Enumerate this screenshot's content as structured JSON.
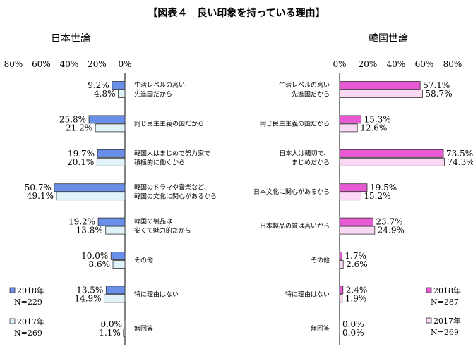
{
  "figure_title": "【図表４　良い印象を持っている理由】",
  "colors": {
    "jp_2018": "#6a8fe8",
    "jp_2017": "#dff3f8",
    "kr_2018": "#e85ad4",
    "kr_2017": "#fbd9f4",
    "outline": "#333333"
  },
  "chart_data": [
    {
      "type": "bar",
      "orientation": "horizontal",
      "direction": "right-to-left",
      "title": "日本世論",
      "xlim": [
        0,
        80
      ],
      "xticks": [
        "80%",
        "60%",
        "40%",
        "20%",
        "0%"
      ],
      "categories": [
        [
          "生活レベルの高い",
          "先進国だから"
        ],
        [
          "同じ民主主義の国だから"
        ],
        [
          "韓国人はまじめで努力家で",
          "積極的に働くから"
        ],
        [
          "韓国のドラマや音楽など、",
          "韓国の文化に関心があるから"
        ],
        [
          "韓国の製品は",
          "安くて魅力的だから"
        ],
        [
          "その他"
        ],
        [
          "特に理由はない"
        ],
        [
          "無回答"
        ]
      ],
      "series": [
        {
          "name": "2018年",
          "n": "N=229",
          "values": [
            9.2,
            25.8,
            19.7,
            50.7,
            19.2,
            10.0,
            13.5,
            0.0
          ]
        },
        {
          "name": "2017年",
          "n": "N=269",
          "values": [
            4.8,
            21.2,
            20.1,
            49.1,
            13.8,
            8.6,
            14.9,
            1.1
          ]
        }
      ]
    },
    {
      "type": "bar",
      "orientation": "horizontal",
      "direction": "left-to-right",
      "title": "韓国世論",
      "xlim": [
        0,
        80
      ],
      "xticks": [
        "0%",
        "20%",
        "40%",
        "60%",
        "80%"
      ],
      "categories": [
        [
          "生活レベルの高い",
          "先進国だから"
        ],
        [
          "同じ民主主義の国だから"
        ],
        [
          "日本人は親切で、",
          "まじめだから"
        ],
        [
          "日本文化に関心があるから"
        ],
        [
          "日本製品の質は高いから"
        ],
        [
          "その他"
        ],
        [
          "特に理由はない"
        ],
        [
          "無回答"
        ]
      ],
      "series": [
        {
          "name": "2018年",
          "n": "N=287",
          "values": [
            57.1,
            15.3,
            73.5,
            19.5,
            23.7,
            1.7,
            2.4,
            0.0
          ]
        },
        {
          "name": "2017年",
          "n": "N=269",
          "values": [
            58.7,
            12.6,
            74.3,
            15.2,
            24.9,
            2.6,
            1.9,
            0.0
          ]
        }
      ]
    }
  ]
}
